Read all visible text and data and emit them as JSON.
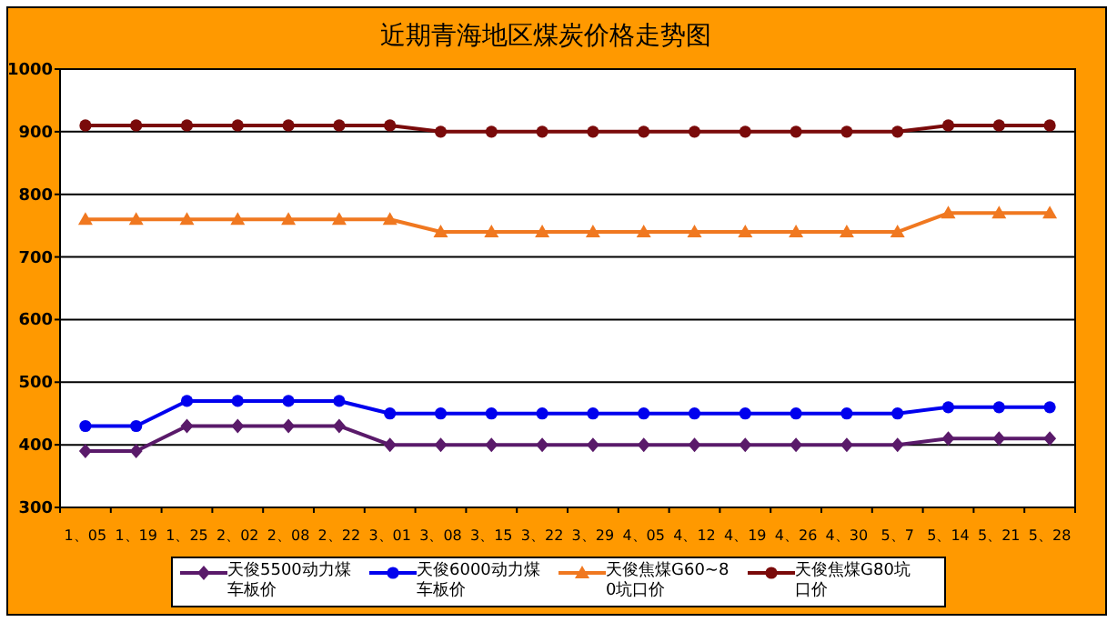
{
  "chart_data": {
    "type": "line",
    "title": "近期青海地区煤炭价格走势图",
    "categories": [
      "1、05",
      "1、19",
      "1、25",
      "2、02",
      "2、08",
      "2、22",
      "3、01",
      "3、08",
      "3、15",
      "3、22",
      "3、29",
      "4、05",
      "4、12",
      "4、19",
      "4、26",
      "4、30",
      "5、7",
      "5、14",
      "5、21",
      "5、28"
    ],
    "series": [
      {
        "name": "天俊5500动力煤车板价",
        "color": "#5a1a6a",
        "marker": "diamond",
        "values": [
          390,
          390,
          430,
          430,
          430,
          430,
          400,
          400,
          400,
          400,
          400,
          400,
          400,
          400,
          400,
          400,
          400,
          410,
          410,
          410
        ]
      },
      {
        "name": "天俊6000动力煤车板价",
        "color": "#0000ee",
        "marker": "circle",
        "values": [
          430,
          430,
          470,
          470,
          470,
          470,
          450,
          450,
          450,
          450,
          450,
          450,
          450,
          450,
          450,
          450,
          450,
          460,
          460,
          460
        ]
      },
      {
        "name": "天俊焦煤G60~80坑口价",
        "color": "#f07820",
        "marker": "triangle",
        "values": [
          760,
          760,
          760,
          760,
          760,
          760,
          760,
          740,
          740,
          740,
          740,
          740,
          740,
          740,
          740,
          740,
          740,
          770,
          770,
          770
        ]
      },
      {
        "name": "天俊焦煤G80坑口价",
        "color": "#7a0a0a",
        "marker": "circle",
        "values": [
          910,
          910,
          910,
          910,
          910,
          910,
          910,
          900,
          900,
          900,
          900,
          900,
          900,
          900,
          900,
          900,
          900,
          910,
          910,
          910
        ]
      }
    ],
    "ylim": [
      300,
      1000
    ],
    "yticks": [
      300,
      400,
      500,
      600,
      700,
      800,
      900,
      1000
    ],
    "grid": "y",
    "legend": "bottom"
  }
}
